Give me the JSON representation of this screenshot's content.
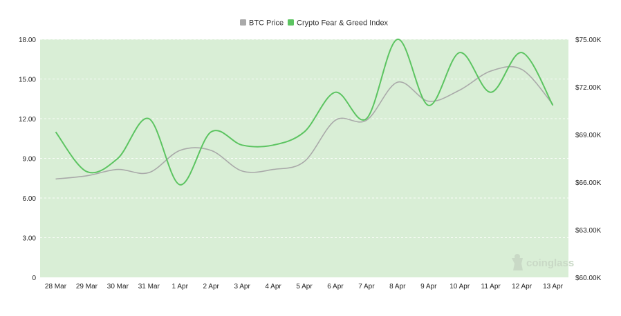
{
  "chart_data": {
    "type": "line",
    "categories": [
      "28 Mar",
      "29 Mar",
      "30 Mar",
      "31 Mar",
      "1 Apr",
      "2 Apr",
      "3 Apr",
      "4 Apr",
      "5 Apr",
      "6 Apr",
      "7 Apr",
      "8 Apr",
      "9 Apr",
      "10 Apr",
      "11 Apr",
      "12 Apr",
      "13 Apr"
    ],
    "series": [
      {
        "name": "BTC Price",
        "axis": "right",
        "color": "#a9a9a9",
        "values": [
          66200,
          66400,
          66800,
          66600,
          68000,
          68000,
          66700,
          66800,
          67300,
          69900,
          69900,
          72300,
          71100,
          71800,
          73000,
          73100,
          70900
        ]
      },
      {
        "name": "Crypto Fear & Greed Index",
        "axis": "left",
        "color": "#5cc461",
        "values": [
          11,
          8,
          9,
          12,
          7,
          11,
          10,
          10,
          11,
          14,
          12,
          18,
          13,
          17,
          14,
          17,
          13
        ]
      }
    ],
    "y_left": {
      "ticks": [
        "0",
        "3.00",
        "6.00",
        "9.00",
        "12.00",
        "15.00",
        "18.00"
      ],
      "ylim": [
        0,
        18
      ]
    },
    "y_right": {
      "ticks": [
        "$60.00K",
        "$63.00K",
        "$66.00K",
        "$69.00K",
        "$72.00K",
        "$75.00K"
      ],
      "ylim": [
        60000,
        75000
      ]
    },
    "legend": {
      "placement": "top-center"
    },
    "plot_background": "#d9eed6",
    "grid": true
  },
  "watermark": {
    "text": "coinglass",
    "icon": "coinglass-logo-icon"
  }
}
